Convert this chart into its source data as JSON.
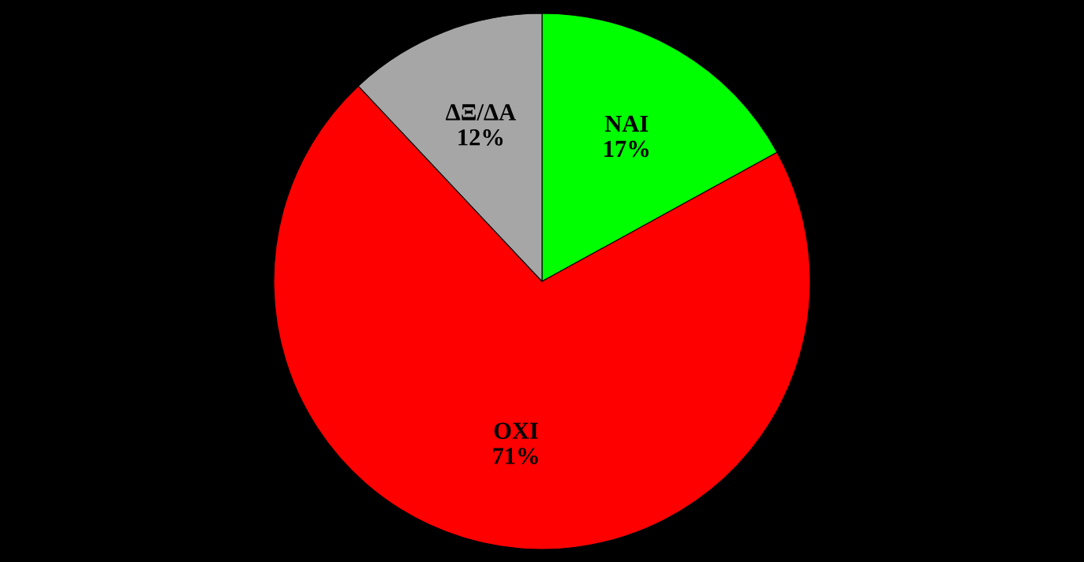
{
  "chart_data": {
    "type": "pie",
    "categories": [
      "ΝΑΙ",
      "ΟΧΙ",
      "ΔΞ/ΔΑ"
    ],
    "values": [
      17,
      71,
      12
    ],
    "value_labels": [
      "17%",
      "71%",
      "12%"
    ],
    "colors": [
      "#00ff00",
      "#ff0000",
      "#a6a6a6"
    ]
  }
}
